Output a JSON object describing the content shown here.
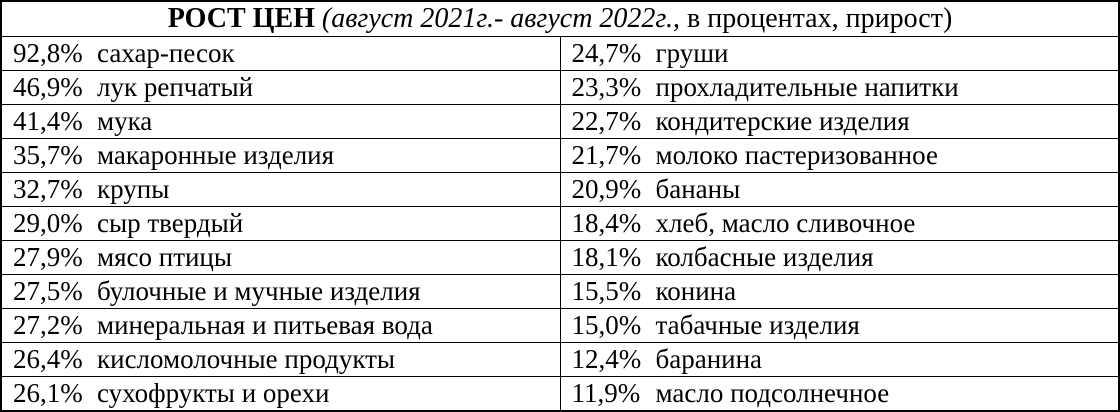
{
  "title": {
    "bold": "РОСТ ЦЕН",
    "italic": " (август 2021г.- август 2022г.,",
    "rest": " в процентах, прирост)"
  },
  "colors": {
    "border": "#000000",
    "text": "#000000",
    "background": "#ffffff"
  },
  "rows": [
    {
      "left": {
        "pct": "92,8%",
        "item": "сахар-песок"
      },
      "right": {
        "pct": "24,7%",
        "item": "груши"
      }
    },
    {
      "left": {
        "pct": "46,9%",
        "item": "лук репчатый"
      },
      "right": {
        "pct": "23,3%",
        "item": "прохладительные напитки"
      }
    },
    {
      "left": {
        "pct": "41,4%",
        "item": "мука"
      },
      "right": {
        "pct": "22,7%",
        "item": "кондитерские изделия"
      }
    },
    {
      "left": {
        "pct": "35,7%",
        "item": "макаронные изделия"
      },
      "right": {
        "pct": "21,7%",
        "item": "молоко пастеризованное"
      }
    },
    {
      "left": {
        "pct": "32,7%",
        "item": "крупы"
      },
      "right": {
        "pct": "20,9%",
        "item": "бананы"
      }
    },
    {
      "left": {
        "pct": "29,0%",
        "item": "сыр твердый"
      },
      "right": {
        "pct": "18,4%",
        "item": "хлеб, масло сливочное"
      }
    },
    {
      "left": {
        "pct": "27,9%",
        "item": "мясо птицы"
      },
      "right": {
        "pct": "18,1%",
        "item": "колбасные изделия"
      }
    },
    {
      "left": {
        "pct": "27,5%",
        "item": "булочные и мучные изделия"
      },
      "right": {
        "pct": "15,5%",
        "item": "конина"
      }
    },
    {
      "left": {
        "pct": "27,2%",
        "item": "минеральная и питьевая вода"
      },
      "right": {
        "pct": "15,0%",
        "item": "табачные изделия"
      }
    },
    {
      "left": {
        "pct": "26,4%",
        "item": "кисломолочные продукты"
      },
      "right": {
        "pct": "12,4%",
        "item": "баранина"
      }
    },
    {
      "left": {
        "pct": "26,1%",
        "item": "сухофрукты и орехи"
      },
      "right": {
        "pct": "11,9%",
        "item": "масло подсолнечное"
      }
    }
  ],
  "chart_data": {
    "type": "table",
    "title": "РОСТ ЦЕН (август 2021г.- август 2022г., в процентах, прирост)",
    "unit": "percent",
    "items": [
      {
        "item": "сахар-песок",
        "growth_pct": 92.8
      },
      {
        "item": "лук репчатый",
        "growth_pct": 46.9
      },
      {
        "item": "мука",
        "growth_pct": 41.4
      },
      {
        "item": "макаронные изделия",
        "growth_pct": 35.7
      },
      {
        "item": "крупы",
        "growth_pct": 32.7
      },
      {
        "item": "сыр твердый",
        "growth_pct": 29.0
      },
      {
        "item": "мясо птицы",
        "growth_pct": 27.9
      },
      {
        "item": "булочные и мучные изделия",
        "growth_pct": 27.5
      },
      {
        "item": "минеральная и питьевая вода",
        "growth_pct": 27.2
      },
      {
        "item": "кисломолочные продукты",
        "growth_pct": 26.4
      },
      {
        "item": "сухофрукты и орехи",
        "growth_pct": 26.1
      },
      {
        "item": "груши",
        "growth_pct": 24.7
      },
      {
        "item": "прохладительные напитки",
        "growth_pct": 23.3
      },
      {
        "item": "кондитерские изделия",
        "growth_pct": 22.7
      },
      {
        "item": "молоко пастеризованное",
        "growth_pct": 21.7
      },
      {
        "item": "бананы",
        "growth_pct": 20.9
      },
      {
        "item": "хлеб, масло сливочное",
        "growth_pct": 18.4
      },
      {
        "item": "колбасные изделия",
        "growth_pct": 18.1
      },
      {
        "item": "конина",
        "growth_pct": 15.5
      },
      {
        "item": "табачные изделия",
        "growth_pct": 15.0
      },
      {
        "item": "баранина",
        "growth_pct": 12.4
      },
      {
        "item": "масло подсолнечное",
        "growth_pct": 11.9
      }
    ]
  }
}
